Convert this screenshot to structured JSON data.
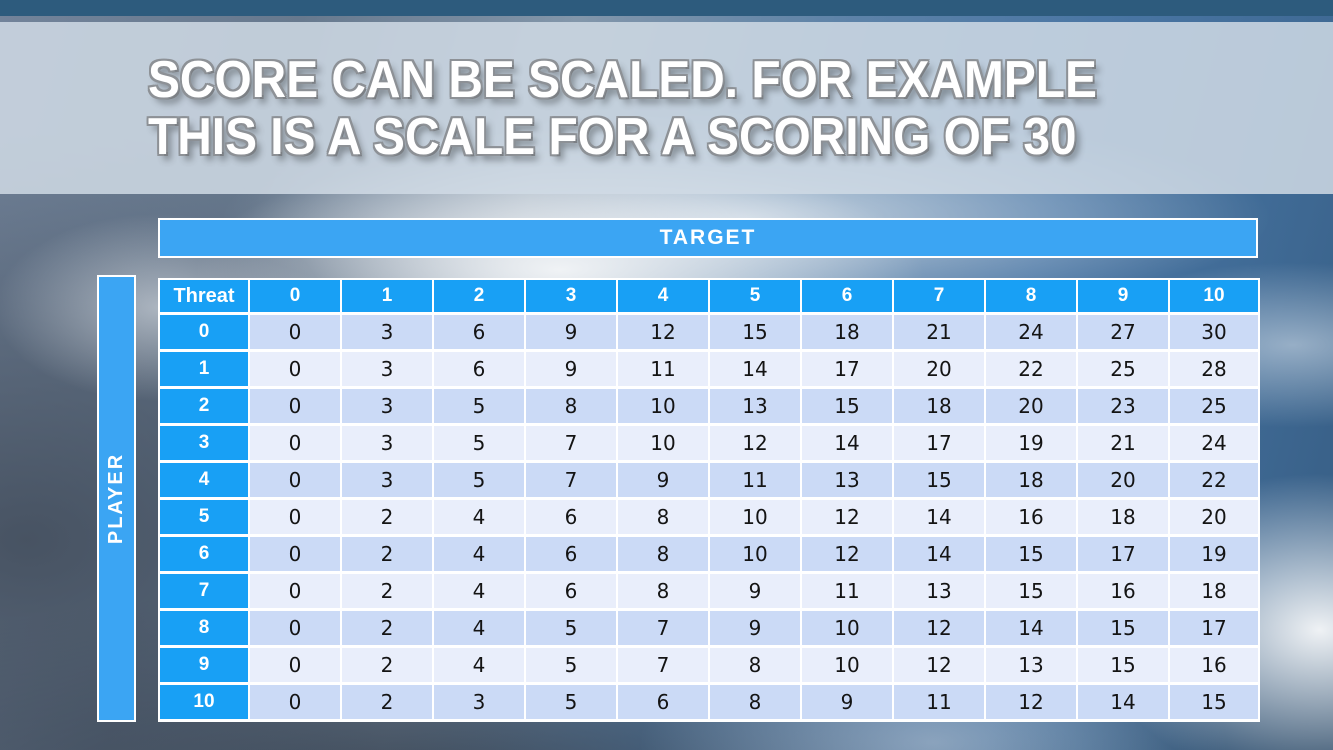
{
  "slide": {
    "title_line1": "SCORE CAN BE SCALED. FOR EXAMPLE",
    "title_line2": "THIS IS A SCALE FOR A SCORING OF 30"
  },
  "table": {
    "target_label": "TARGET",
    "player_label": "PLAYER",
    "corner_label": "Threat",
    "col_headers": [
      "0",
      "1",
      "2",
      "3",
      "4",
      "5",
      "6",
      "7",
      "8",
      "9",
      "10"
    ],
    "rows": [
      {
        "header": "0",
        "values": [
          0,
          3,
          6,
          9,
          12,
          15,
          18,
          21,
          24,
          27,
          30
        ]
      },
      {
        "header": "1",
        "values": [
          0,
          3,
          6,
          9,
          11,
          14,
          17,
          20,
          22,
          25,
          28
        ]
      },
      {
        "header": "2",
        "values": [
          0,
          3,
          5,
          8,
          10,
          13,
          15,
          18,
          20,
          23,
          25
        ]
      },
      {
        "header": "3",
        "values": [
          0,
          3,
          5,
          7,
          10,
          12,
          14,
          17,
          19,
          21,
          24
        ]
      },
      {
        "header": "4",
        "values": [
          0,
          3,
          5,
          7,
          9,
          11,
          13,
          15,
          18,
          20,
          22
        ]
      },
      {
        "header": "5",
        "values": [
          0,
          2,
          4,
          6,
          8,
          10,
          12,
          14,
          16,
          18,
          20
        ]
      },
      {
        "header": "6",
        "values": [
          0,
          2,
          4,
          6,
          8,
          10,
          12,
          14,
          15,
          17,
          19
        ]
      },
      {
        "header": "7",
        "values": [
          0,
          2,
          4,
          6,
          8,
          9,
          11,
          13,
          15,
          16,
          18
        ]
      },
      {
        "header": "8",
        "values": [
          0,
          2,
          4,
          5,
          7,
          9,
          10,
          12,
          14,
          15,
          17
        ]
      },
      {
        "header": "9",
        "values": [
          0,
          2,
          4,
          5,
          7,
          8,
          10,
          12,
          13,
          15,
          16
        ]
      },
      {
        "header": "10",
        "values": [
          0,
          2,
          3,
          5,
          6,
          8,
          9,
          11,
          12,
          14,
          15
        ]
      }
    ]
  },
  "colors": {
    "cell_header_blue": "#18a0f5",
    "banner_blue": "#3ba5f3",
    "row_band_dark": "#cbdaf6",
    "row_band_light": "#e9eefb",
    "top_bar": "#2d5b7d",
    "title_band": "rgba(208,219,229,0.85)",
    "grid_line": "#ffffff"
  }
}
